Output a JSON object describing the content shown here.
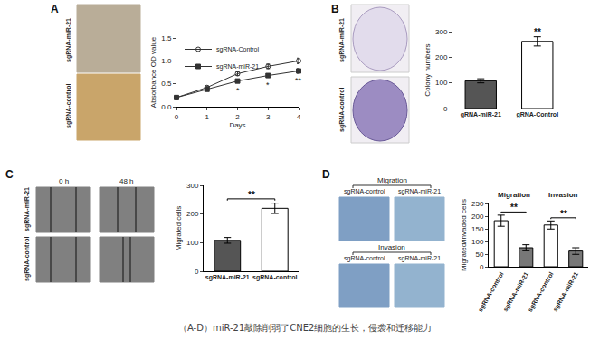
{
  "caption": "（A-D）miR-21敲除削弱了CNE2细胞的生长，侵袭和迁移能力",
  "panel_labels": [
    "A",
    "B",
    "C",
    "D"
  ],
  "images": {
    "A": [
      "sgRNA-miR-21",
      "sgRNA-control"
    ],
    "B": [
      "sgRNA-miR-21",
      "sgRNA-control"
    ],
    "C": {
      "columns": [
        "0 h",
        "48 h"
      ],
      "rows": [
        "sgRNA-miR-21",
        "sgRNA-control"
      ]
    },
    "D": {
      "groups": [
        {
          "title": "Migration",
          "labels": [
            "sgRNA-control",
            "sgRNA-miR-21"
          ]
        },
        {
          "title": "Invasion",
          "labels": [
            "sgRNA-control",
            "sgRNA-miR-21"
          ]
        }
      ]
    }
  },
  "chart_data": [
    {
      "type": "line",
      "x_label": "Days",
      "y_label": "Absorbance OD value",
      "x": [
        0,
        1,
        2,
        3,
        4
      ],
      "xlim": [
        0,
        4
      ],
      "xticks": [
        0,
        1,
        2,
        3,
        4
      ],
      "ylim": [
        0,
        1.5
      ],
      "yticks": [
        {
          "value": 0,
          "label": "0.0"
        },
        {
          "value": 0.5,
          "label": "0.5"
        },
        {
          "value": 1,
          "label": "1.0"
        },
        {
          "value": 1.5,
          "label": "1.5"
        }
      ],
      "grid": false,
      "legend": "top-left",
      "series": [
        {
          "name": "sgRNA-Control",
          "color": "#333333",
          "marker": "open-circle",
          "values": [
            0.2,
            0.42,
            0.72,
            0.88,
            1.0
          ],
          "errors": [
            0.02,
            0.03,
            0.04,
            0.05,
            0.06
          ]
        },
        {
          "name": "sgRNA-miR-21",
          "color": "#333333",
          "marker": "square",
          "values": [
            0.2,
            0.38,
            0.56,
            0.68,
            0.78
          ],
          "errors": [
            0.02,
            0.03,
            0.04,
            0.04,
            0.05
          ]
        }
      ],
      "annotations": [
        {
          "x": 2,
          "text": "*"
        },
        {
          "x": 3,
          "text": "*"
        },
        {
          "x": 4,
          "text": "**"
        }
      ]
    },
    {
      "type": "bar",
      "y_label": "Colony numbers",
      "categories": [
        "gRNA-miR-21",
        "gRNA-Control"
      ],
      "values": [
        108,
        262
      ],
      "errors": [
        8,
        18
      ],
      "colors": [
        "#555555",
        "#ffffff"
      ],
      "ylim": [
        0,
        300
      ],
      "yticks": [
        0,
        100,
        200,
        300
      ],
      "grid": false,
      "annotations": [
        {
          "at": 1,
          "text": "**"
        }
      ]
    },
    {
      "type": "bar",
      "y_label": "Migrated cells",
      "categories": [
        "sgRNA-miR-21",
        "sgRNA-control"
      ],
      "values": [
        108,
        220
      ],
      "errors": [
        10,
        18
      ],
      "colors": [
        "#555555",
        "#ffffff"
      ],
      "ylim": [
        0,
        300
      ],
      "yticks": [
        0,
        100,
        200,
        300
      ],
      "grid": false,
      "annotations": [
        {
          "from": 0,
          "to": 1,
          "text": "**"
        }
      ]
    },
    {
      "type": "bar",
      "y_label": "Migrated/Invaded cells",
      "categories": [
        "sgRNA-control",
        "sgRNA-miR-21",
        "sgRNA-control",
        "sgRNA-miR-21"
      ],
      "values": [
        182,
        75,
        165,
        62
      ],
      "errors": [
        22,
        12,
        16,
        13
      ],
      "colors": [
        "#ffffff",
        "#777777",
        "#ffffff",
        "#777777"
      ],
      "ylim": [
        0,
        250
      ],
      "yticks": [
        0,
        50,
        100,
        150,
        200,
        250
      ],
      "grid": false,
      "group_labels": [
        {
          "text": "Migration",
          "from": 0,
          "to": 1
        },
        {
          "text": "Invasion",
          "from": 2,
          "to": 3
        }
      ],
      "annotations": [
        {
          "from": 0,
          "to": 1,
          "text": "**"
        },
        {
          "from": 2,
          "to": 3,
          "text": "**"
        }
      ]
    }
  ]
}
